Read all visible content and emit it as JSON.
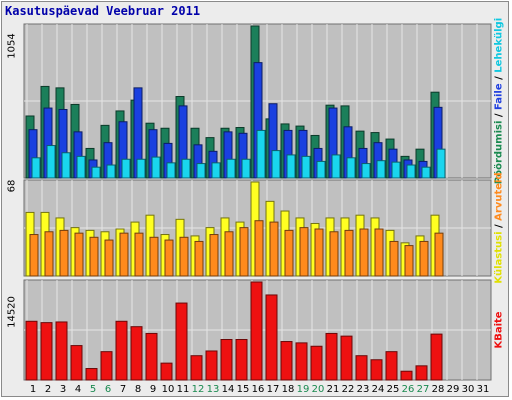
{
  "title": "Kasutuspäevad Veebruar 2011",
  "colors": {
    "frame_bg": "#ececec",
    "panel_bg": "#c0c0c0",
    "grid": "#e6e6e6",
    "pages": "#1b7f5a",
    "files": "#1a40e0",
    "hits": "#19d5ee",
    "visits": "#ffff22",
    "sites": "#ff8a1c",
    "kbytes": "#ee1111",
    "weekend_label": "#1a8a50",
    "weekday_label": "#000000"
  },
  "legend": {
    "top": [
      {
        "text": "Pöördumisi",
        "color": "#1a8a50"
      },
      {
        "text": " / ",
        "color": "#000000"
      },
      {
        "text": "Faile",
        "color": "#2040e0"
      },
      {
        "text": " / ",
        "color": "#000000"
      },
      {
        "text": "Lehekülgi",
        "color": "#10c8e0"
      }
    ],
    "middle": [
      {
        "text": "Külastusi",
        "color": "#e0e000"
      },
      {
        "text": " / ",
        "color": "#000000"
      },
      {
        "text": "Arvuteid",
        "color": "#ff8a1c"
      }
    ],
    "bottom": [
      {
        "text": "KBaite",
        "color": "#ee1111"
      }
    ]
  },
  "axis_max": {
    "top": "1054",
    "middle": "68",
    "bottom": "14520"
  },
  "chart_data": {
    "type": "bar",
    "title": "Kasutuspäevad Veebruar 2011",
    "categories": [
      "1",
      "2",
      "3",
      "4",
      "5",
      "6",
      "7",
      "8",
      "9",
      "10",
      "11",
      "12",
      "13",
      "14",
      "15",
      "16",
      "17",
      "18",
      "19",
      "20",
      "21",
      "22",
      "23",
      "24",
      "25",
      "26",
      "27",
      "28",
      "29",
      "30",
      "31"
    ],
    "weekend_days": [
      "5",
      "6",
      "12",
      "13",
      "19",
      "20",
      "26",
      "27"
    ],
    "panels": [
      {
        "name": "top",
        "ylim": [
          0,
          1054
        ],
        "series": [
          {
            "name": "Pöördumisi",
            "color": "#1b7f5a",
            "values": [
              430,
              635,
              625,
              510,
              205,
              365,
              465,
              540,
              380,
              345,
              565,
              345,
              280,
              345,
              350,
              1054,
              410,
              375,
              360,
              295,
              505,
              500,
              325,
              315,
              270,
              150,
              200,
              595,
              0,
              0,
              0
            ]
          },
          {
            "name": "Faile",
            "color": "#1a40e0",
            "values": [
              335,
              485,
              475,
              320,
              125,
              245,
              390,
              625,
              335,
              240,
              500,
              230,
              185,
              320,
              310,
              800,
              515,
              330,
              330,
              205,
              485,
              355,
              205,
              245,
              200,
              125,
              115,
              490,
              0,
              0,
              0
            ]
          },
          {
            "name": "Lehekülgi",
            "color": "#19d5ee",
            "values": [
              140,
              225,
              175,
              150,
              75,
              90,
              130,
              130,
              145,
              105,
              130,
              100,
              105,
              130,
              130,
              330,
              190,
              160,
              150,
              115,
              160,
              140,
              100,
              120,
              110,
              90,
              75,
              200,
              0,
              0,
              0
            ]
          }
        ]
      },
      {
        "name": "middle",
        "ylim": [
          0,
          68
        ],
        "series": [
          {
            "name": "Külastusi",
            "color": "#ffff22",
            "values": [
              46,
              46,
              42,
              35,
              33,
              32,
              34,
              39,
              44,
              30,
              41,
              29,
              35,
              42,
              39,
              68,
              54,
              47,
              42,
              38,
              42,
              42,
              44,
              42,
              33,
              24,
              29,
              44,
              0,
              0,
              0
            ]
          },
          {
            "name": "Arvuteid",
            "color": "#ff8a1c",
            "values": [
              30,
              32,
              33,
              31,
              28,
              26,
              31,
              31,
              28,
              26,
              28,
              25,
              30,
              32,
              35,
              40,
              39,
              33,
              35,
              34,
              32,
              33,
              34,
              34,
              25,
              22,
              25,
              31,
              0,
              0,
              0
            ]
          }
        ]
      },
      {
        "name": "bottom",
        "ylim": [
          0,
          14520
        ],
        "series": [
          {
            "name": "KBaite",
            "color": "#ee1111",
            "values": [
              8700,
              8500,
              8600,
              5100,
              1700,
              4200,
              8700,
              7900,
              6900,
              2500,
              11400,
              3600,
              4300,
              6000,
              6000,
              14520,
              12600,
              5700,
              5500,
              5000,
              6900,
              6500,
              3600,
              3000,
              4200,
              1300,
              2100,
              6800,
              0,
              0,
              0
            ]
          }
        ]
      }
    ]
  }
}
